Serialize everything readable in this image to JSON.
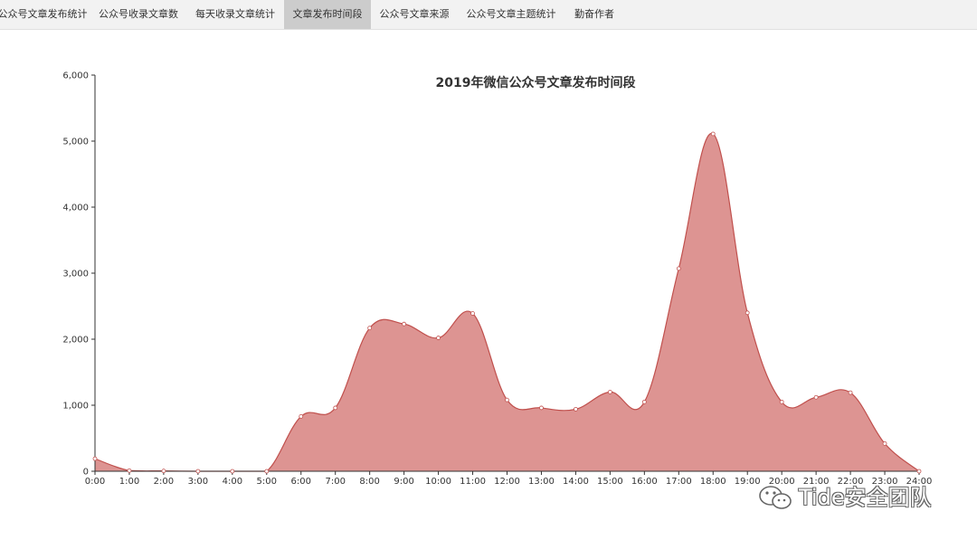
{
  "tabs": [
    {
      "label": "公众号文章发布统计",
      "active": false
    },
    {
      "label": "公众号收录文章数",
      "active": false
    },
    {
      "label": "每天收录文章统计",
      "active": false
    },
    {
      "label": "文章发布时间段",
      "active": true
    },
    {
      "label": "公众号文章来源",
      "active": false
    },
    {
      "label": "公众号文章主题统计",
      "active": false
    },
    {
      "label": "勤奋作者",
      "active": false
    }
  ],
  "watermark": {
    "text": "Tide安全团队",
    "icon": "wechat-icon"
  },
  "colors": {
    "area_fill": "#dd9492",
    "area_line": "#c0504d",
    "axis": "#333333"
  },
  "chart_data": {
    "type": "area",
    "title": "2019年微信公众号文章发布时间段",
    "xlabel": "",
    "ylabel": "",
    "smooth": true,
    "ylim": [
      0,
      6000
    ],
    "yticks": [
      "0",
      "1,000",
      "2,000",
      "3,000",
      "4,000",
      "5,000",
      "6,000"
    ],
    "ytick_values": [
      0,
      1000,
      2000,
      3000,
      4000,
      5000,
      6000
    ],
    "categories": [
      "0:00",
      "1:00",
      "2:00",
      "3:00",
      "4:00",
      "5:00",
      "6:00",
      "7:00",
      "8:00",
      "9:00",
      "10:00",
      "11:00",
      "12:00",
      "13:00",
      "14:00",
      "15:00",
      "16:00",
      "17:00",
      "18:00",
      "19:00",
      "20:00",
      "21:00",
      "22:00",
      "23:00",
      "24:00"
    ],
    "values": [
      190,
      10,
      5,
      0,
      0,
      0,
      830,
      960,
      2170,
      2230,
      2020,
      2390,
      1080,
      960,
      940,
      1200,
      1050,
      3070,
      5110,
      2400,
      1050,
      1120,
      1190,
      420,
      0
    ],
    "grid": false,
    "legend": "none"
  }
}
